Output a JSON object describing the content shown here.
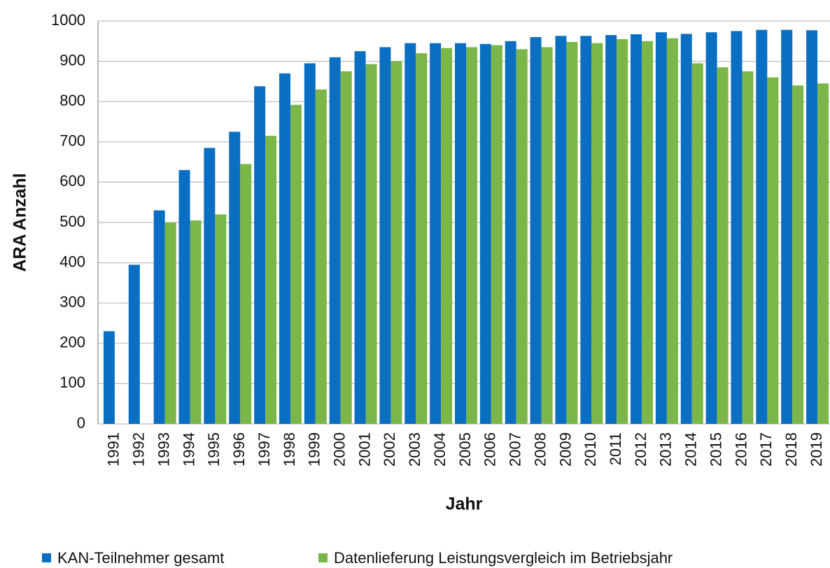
{
  "chart_data": {
    "type": "bar",
    "y_label": "ARA Anzahl",
    "x_label": "Jahr",
    "categories": [
      "1991",
      "1992",
      "1993",
      "1994",
      "1995",
      "1996",
      "1997",
      "1998",
      "1999",
      "2000",
      "2001",
      "2002",
      "2003",
      "2004",
      "2005",
      "2006",
      "2007",
      "2008",
      "2009",
      "2010",
      "2011",
      "2012",
      "2013",
      "2014",
      "2015",
      "2016",
      "2017",
      "2018",
      "2019"
    ],
    "series": [
      {
        "name": "KAN-Teilnehmer gesamt",
        "color": "#0a6fc2",
        "values": [
          230,
          395,
          530,
          630,
          685,
          725,
          838,
          870,
          895,
          910,
          925,
          935,
          945,
          945,
          945,
          943,
          950,
          960,
          963,
          963,
          965,
          967,
          972,
          968,
          972,
          975,
          978,
          978,
          977
        ]
      },
      {
        "name": "Datenlieferung Leistungsvergleich im Betriebsjahr",
        "color": "#7ab648",
        "values": [
          null,
          null,
          500,
          505,
          520,
          645,
          715,
          792,
          830,
          875,
          893,
          900,
          920,
          933,
          935,
          940,
          930,
          935,
          948,
          945,
          955,
          950,
          957,
          895,
          885,
          875,
          860,
          840,
          845
        ]
      }
    ],
    "ylim": [
      0,
      1000
    ],
    "yticks": [
      0,
      100,
      200,
      300,
      400,
      500,
      600,
      700,
      800,
      900,
      1000
    ],
    "grid": true,
    "legend": "bottom"
  }
}
